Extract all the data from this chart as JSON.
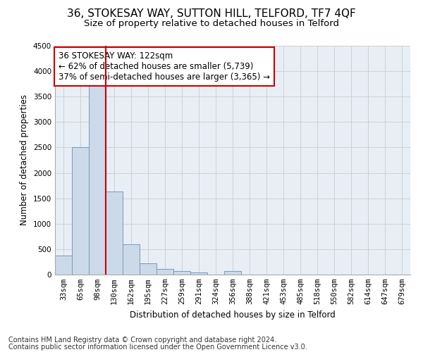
{
  "title": "36, STOKESAY WAY, SUTTON HILL, TELFORD, TF7 4QF",
  "subtitle": "Size of property relative to detached houses in Telford",
  "xlabel": "Distribution of detached houses by size in Telford",
  "ylabel": "Number of detached properties",
  "footnote1": "Contains HM Land Registry data © Crown copyright and database right 2024.",
  "footnote2": "Contains public sector information licensed under the Open Government Licence v3.0.",
  "bar_color": "#ccd9e8",
  "bar_edge_color": "#7799bb",
  "grid_color": "#cccccc",
  "bg_color": "#e8eef5",
  "annotation_box_color": "#cc0000",
  "vline_color": "#cc0000",
  "categories": [
    "33sqm",
    "65sqm",
    "98sqm",
    "130sqm",
    "162sqm",
    "195sqm",
    "227sqm",
    "259sqm",
    "291sqm",
    "324sqm",
    "356sqm",
    "388sqm",
    "421sqm",
    "453sqm",
    "485sqm",
    "518sqm",
    "550sqm",
    "582sqm",
    "614sqm",
    "647sqm",
    "679sqm"
  ],
  "values": [
    370,
    2510,
    3720,
    1630,
    590,
    225,
    110,
    65,
    45,
    0,
    65,
    0,
    0,
    0,
    0,
    0,
    0,
    0,
    0,
    0,
    0
  ],
  "ylim": [
    0,
    4500
  ],
  "yticks": [
    0,
    500,
    1000,
    1500,
    2000,
    2500,
    3000,
    3500,
    4000,
    4500
  ],
  "vline_x": 2.5,
  "annotation_text": "36 STOKESAY WAY: 122sqm\n← 62% of detached houses are smaller (5,739)\n37% of semi-detached houses are larger (3,365) →",
  "title_fontsize": 11,
  "subtitle_fontsize": 9.5,
  "axis_label_fontsize": 8.5,
  "tick_fontsize": 7.5,
  "annotation_fontsize": 8.5,
  "footnote_fontsize": 7
}
